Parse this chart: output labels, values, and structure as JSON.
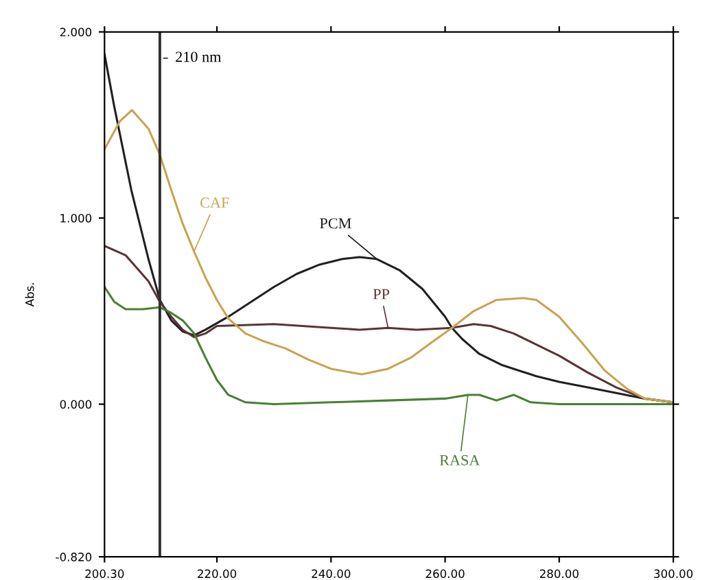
{
  "chart_data": {
    "type": "line",
    "ylabel": "Abs.",
    "x": [
      200.3,
      202,
      205,
      208,
      210,
      212,
      214,
      216,
      218,
      222,
      226,
      230,
      234,
      238,
      242,
      245,
      248,
      252,
      256,
      260,
      261.2,
      263,
      266,
      270,
      276,
      280,
      285,
      290,
      295,
      300
    ],
    "series": [
      {
        "name": "PCM",
        "color": "#202020",
        "values": [
          1.88,
          1.6,
          1.15,
          0.78,
          0.56,
          0.45,
          0.39,
          0.37,
          0.4,
          0.47,
          0.55,
          0.63,
          0.7,
          0.75,
          0.78,
          0.79,
          0.78,
          0.72,
          0.62,
          0.47,
          0.41,
          0.35,
          0.27,
          0.21,
          0.15,
          0.12,
          0.09,
          0.06,
          0.03,
          0.01
        ]
      },
      {
        "name": "PP",
        "color": "#5a3434",
        "x": [
          200.3,
          204,
          208,
          210,
          212,
          214,
          216,
          218,
          220,
          230,
          240,
          245,
          250,
          255,
          261.2,
          265,
          268,
          272,
          276,
          280,
          285,
          290,
          295,
          300
        ],
        "values": [
          0.85,
          0.8,
          0.66,
          0.55,
          0.47,
          0.4,
          0.36,
          0.38,
          0.42,
          0.43,
          0.41,
          0.4,
          0.41,
          0.4,
          0.41,
          0.43,
          0.42,
          0.38,
          0.32,
          0.26,
          0.17,
          0.09,
          0.03,
          0.01
        ]
      },
      {
        "name": "CAF",
        "color": "#c9a252",
        "x": [
          200.3,
          203,
          205.1,
          208,
          210,
          212,
          214,
          216,
          218,
          220,
          222,
          225,
          228,
          232,
          236,
          240,
          245.4,
          250,
          254,
          258,
          261.2,
          265,
          269,
          273.7,
          276,
          280,
          284,
          288,
          292,
          295,
          300
        ],
        "values": [
          1.37,
          1.52,
          1.58,
          1.48,
          1.34,
          1.15,
          0.97,
          0.82,
          0.68,
          0.56,
          0.46,
          0.38,
          0.34,
          0.3,
          0.24,
          0.19,
          0.16,
          0.19,
          0.25,
          0.34,
          0.41,
          0.5,
          0.56,
          0.57,
          0.56,
          0.47,
          0.33,
          0.18,
          0.08,
          0.03,
          0.01
        ]
      },
      {
        "name": "RASA",
        "color": "#4a7f34",
        "x": [
          200.3,
          202,
          204,
          207,
          210,
          212,
          214,
          216,
          218,
          220,
          222,
          225,
          230,
          240,
          250,
          260,
          264,
          266,
          269,
          272,
          275,
          280,
          300
        ],
        "values": [
          0.63,
          0.55,
          0.51,
          0.51,
          0.52,
          0.49,
          0.45,
          0.38,
          0.25,
          0.13,
          0.05,
          0.01,
          0.0,
          0.01,
          0.02,
          0.03,
          0.05,
          0.05,
          0.02,
          0.05,
          0.01,
          0.0,
          0.0
        ]
      }
    ],
    "xlim": [
      200.3,
      300
    ],
    "xticks": [
      {
        "value": 200.3,
        "label": "200.30"
      },
      {
        "value": 220,
        "label": "220.00"
      },
      {
        "value": 240,
        "label": "240.00"
      },
      {
        "value": 260,
        "label": "260.00"
      },
      {
        "value": 280,
        "label": "280.00"
      },
      {
        "value": 300,
        "label": "300.00"
      }
    ],
    "ylim": [
      -0.82,
      2.0
    ],
    "yticks": [
      {
        "value": -0.82,
        "label": "-0.820"
      },
      {
        "value": 0,
        "label": "0.000"
      },
      {
        "value": 1,
        "label": "1.000"
      },
      {
        "value": 2,
        "label": "2.000"
      }
    ],
    "ref_lines": [
      {
        "axis": "x",
        "value": 210,
        "label": "210 nm",
        "color": "#303030"
      }
    ],
    "grid": false,
    "legend": false
  }
}
